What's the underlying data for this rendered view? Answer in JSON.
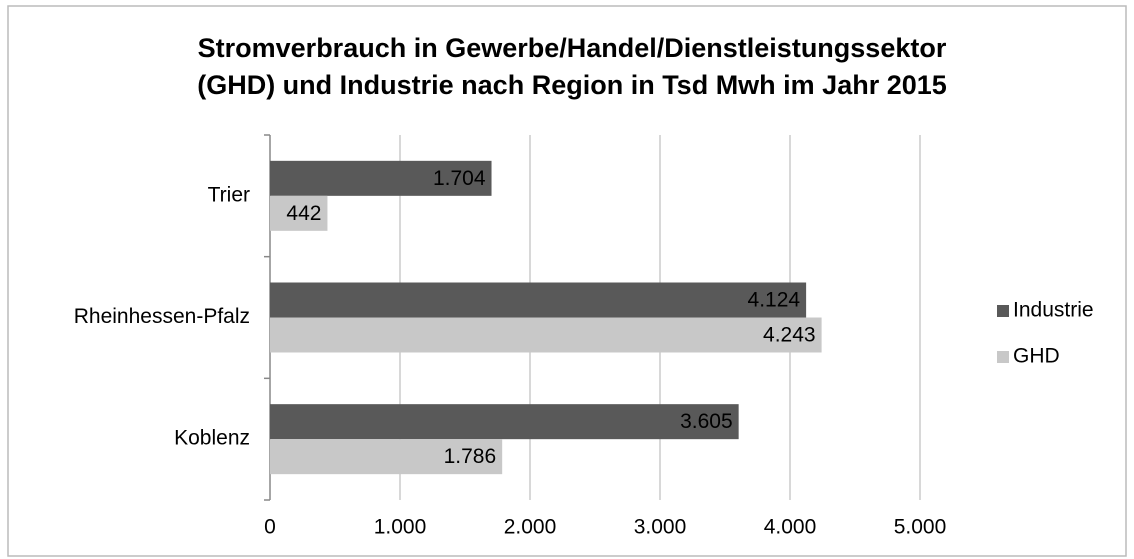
{
  "chart_data": {
    "type": "bar",
    "orientation": "horizontal",
    "title": [
      "Stromverbrauch in Gewerbe/Handel/Dienstleistungssektor",
      "(GHD) und Industrie nach Region in Tsd Mwh im Jahr 2015"
    ],
    "categories": [
      "Trier",
      "Rheinhessen-Pfalz",
      "Koblenz"
    ],
    "series": [
      {
        "name": "Industrie",
        "color": "#595959",
        "label_color": "#ffffff",
        "values": [
          1704,
          4124,
          3605
        ],
        "value_labels": [
          "1.704",
          "4.124",
          "3.605"
        ]
      },
      {
        "name": "GHD",
        "color": "#c8c8c8",
        "label_color": "#000000",
        "values": [
          442,
          4243,
          1786
        ],
        "value_labels": [
          "442",
          "4.243",
          "1.786"
        ]
      }
    ],
    "xlim": [
      0,
      5000
    ],
    "xticks": [
      0,
      {
        "value": 1000,
        "label": "1.000"
      },
      {
        "value": 2000,
        "label": "2.000"
      },
      {
        "value": 3000,
        "label": "3.000"
      },
      {
        "value": 4000,
        "label": "4.000"
      },
      {
        "value": 5000,
        "label": "5.000"
      }
    ],
    "grid": true,
    "legend": "right"
  }
}
